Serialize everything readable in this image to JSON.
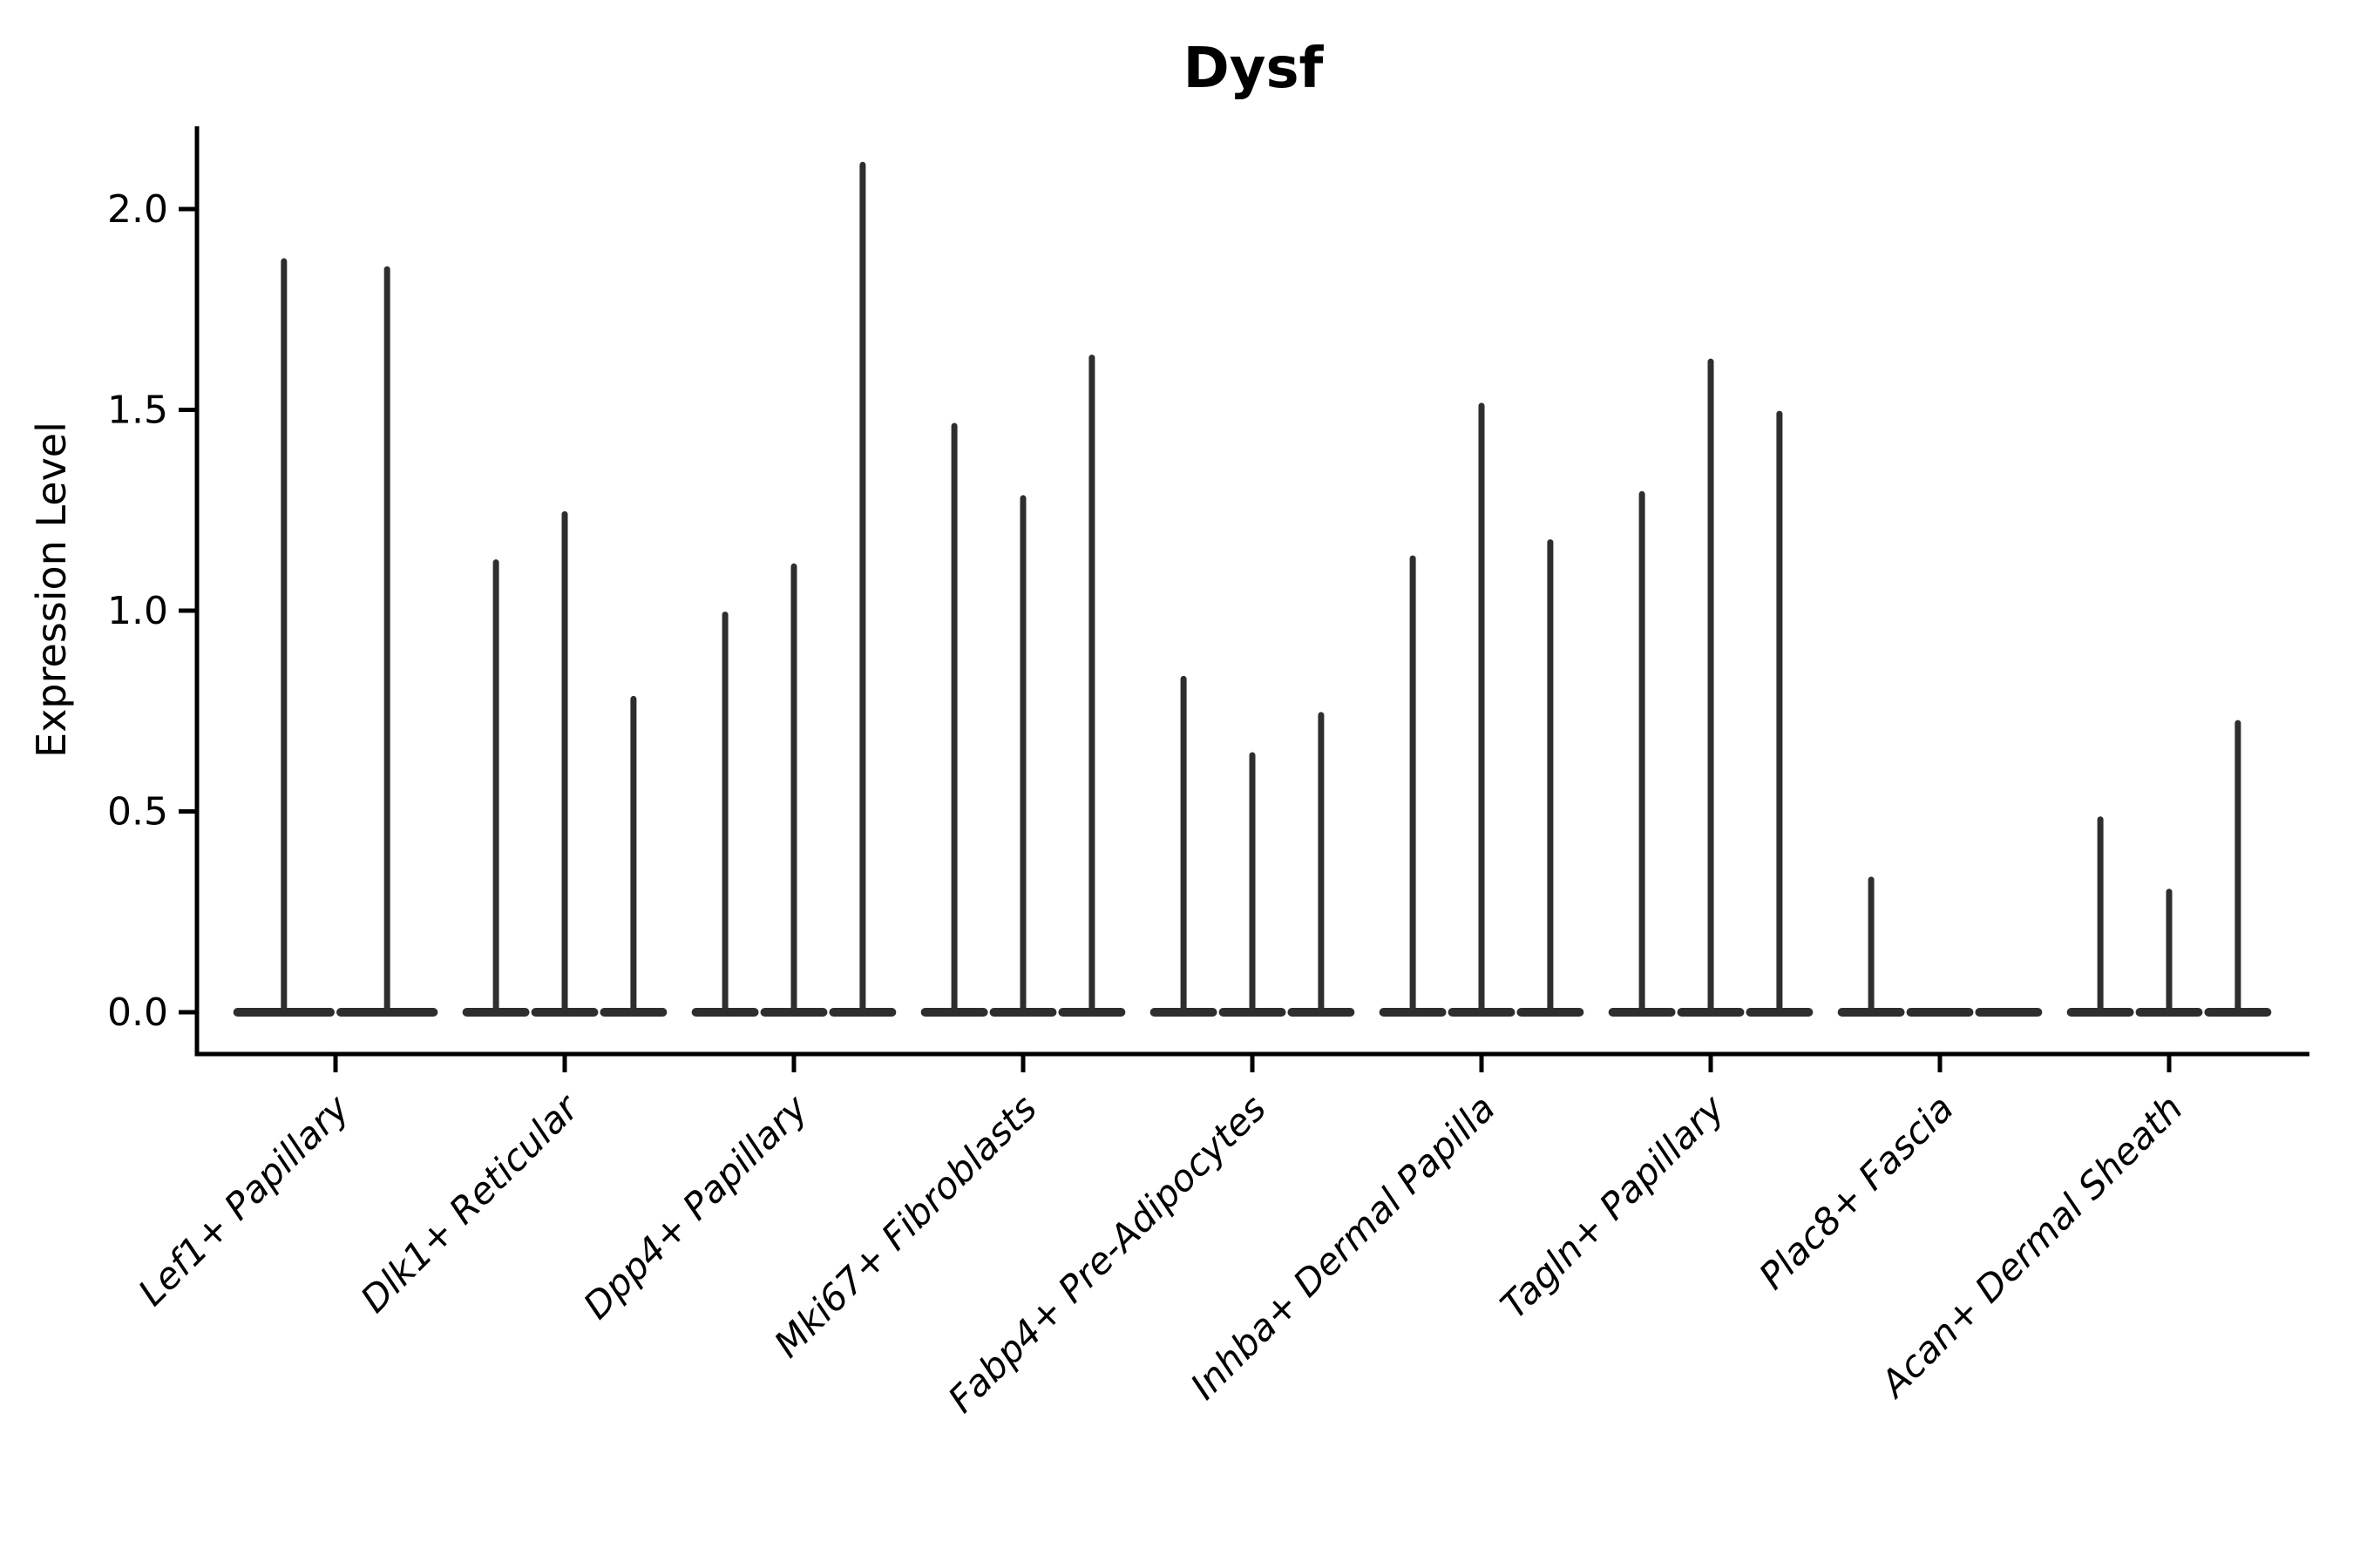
{
  "title": "Dysf",
  "y_axis": {
    "label": "Expression Level",
    "tick_labels": [
      "0.0",
      "0.5",
      "1.0",
      "1.5",
      "2.0"
    ],
    "tick_values": [
      0.0,
      0.5,
      1.0,
      1.5,
      2.0
    ]
  },
  "colors": {
    "violin": "#2e2e2e",
    "axis": "#000000",
    "text": "#000000",
    "background": "#ffffff"
  },
  "chart_data": {
    "type": "violin",
    "title": "Dysf",
    "xlabel": "",
    "ylabel": "Expression Level",
    "ylim": [
      -0.1,
      2.22
    ],
    "yticks": [
      0.0,
      0.5,
      1.0,
      1.5,
      2.0
    ],
    "legend": "none",
    "grid": false,
    "categories": [
      "Lef1+ Papillary",
      "Dlk1+ Reticular",
      "Dpp4+ Papillary",
      "Mki67+ Fibroblasts",
      "Fabp4+ Pre-Adipocytes",
      "Inhba+ Dermal Papilla",
      "Tagln+ Papillary",
      "Plac8+ Fascia",
      "Acan+ Dermal Sheath"
    ],
    "groups": [
      {
        "category": "Lef1+ Papillary",
        "violins": [
          {
            "offset": -0.225,
            "width": 0.45,
            "max": 1.87
          },
          {
            "offset": 0.225,
            "width": 0.45,
            "max": 1.85
          }
        ]
      },
      {
        "category": "Dlk1+ Reticular",
        "violins": [
          {
            "offset": -0.3,
            "width": 0.3,
            "max": 1.12
          },
          {
            "offset": 0.0,
            "width": 0.3,
            "max": 1.24
          },
          {
            "offset": 0.3,
            "width": 0.3,
            "max": 0.78
          }
        ]
      },
      {
        "category": "Dpp4+ Papillary",
        "violins": [
          {
            "offset": -0.3,
            "width": 0.3,
            "max": 0.99
          },
          {
            "offset": 0.0,
            "width": 0.3,
            "max": 1.11
          },
          {
            "offset": 0.3,
            "width": 0.3,
            "max": 2.11
          }
        ]
      },
      {
        "category": "Mki67+ Fibroblasts",
        "violins": [
          {
            "offset": -0.3,
            "width": 0.3,
            "max": 1.46
          },
          {
            "offset": 0.0,
            "width": 0.3,
            "max": 1.28
          },
          {
            "offset": 0.3,
            "width": 0.3,
            "max": 1.63
          }
        ]
      },
      {
        "category": "Fabp4+ Pre-Adipocytes",
        "violins": [
          {
            "offset": -0.3,
            "width": 0.3,
            "max": 0.83
          },
          {
            "offset": 0.0,
            "width": 0.3,
            "max": 0.64
          },
          {
            "offset": 0.3,
            "width": 0.3,
            "max": 0.74
          }
        ]
      },
      {
        "category": "Inhba+ Dermal Papilla",
        "violins": [
          {
            "offset": -0.3,
            "width": 0.3,
            "max": 1.13
          },
          {
            "offset": 0.0,
            "width": 0.3,
            "max": 1.51
          },
          {
            "offset": 0.3,
            "width": 0.3,
            "max": 1.17
          }
        ]
      },
      {
        "category": "Tagln+ Papillary",
        "violins": [
          {
            "offset": -0.3,
            "width": 0.3,
            "max": 1.29
          },
          {
            "offset": 0.0,
            "width": 0.3,
            "max": 1.62
          },
          {
            "offset": 0.3,
            "width": 0.3,
            "max": 1.49
          }
        ]
      },
      {
        "category": "Plac8+ Fascia",
        "violins": [
          {
            "offset": -0.3,
            "width": 0.3,
            "max": 0.33
          },
          {
            "offset": 0.0,
            "width": 0.3,
            "max": 0.0
          },
          {
            "offset": 0.3,
            "width": 0.3,
            "max": 0.0
          }
        ]
      },
      {
        "category": "Acan+ Dermal Sheath",
        "violins": [
          {
            "offset": -0.3,
            "width": 0.3,
            "max": 0.48
          },
          {
            "offset": 0.0,
            "width": 0.3,
            "max": 0.3
          },
          {
            "offset": 0.3,
            "width": 0.3,
            "max": 0.72
          }
        ]
      }
    ]
  }
}
